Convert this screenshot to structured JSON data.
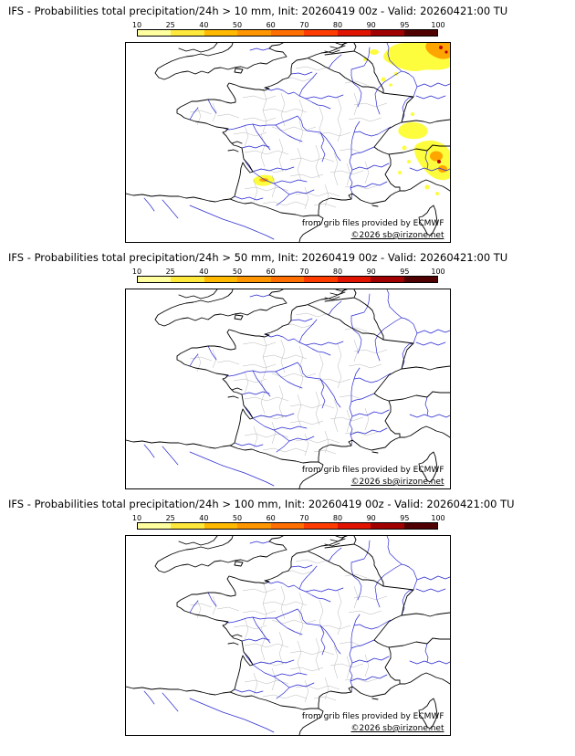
{
  "panels": [
    {
      "id": "precip-gt-10mm",
      "threshold_mm": 10,
      "title": "IFS - Probabilities total precipitation/24h > 10 mm, Init: 20260419 00z - Valid: 20260421:00 TU",
      "has_precipitation_signal": true
    },
    {
      "id": "precip-gt-50mm",
      "threshold_mm": 50,
      "title": "IFS - Probabilities total precipitation/24h > 50 mm, Init: 20260419 00z - Valid: 20260421:00 TU",
      "has_precipitation_signal": false
    },
    {
      "id": "precip-gt-100mm",
      "threshold_mm": 100,
      "title": "IFS - Probabilities total precipitation/24h > 100 mm, Init: 20260419 00z - Valid: 20260421:00 TU",
      "has_precipitation_signal": false
    }
  ],
  "scale": {
    "tick_labels": [
      "10",
      "25",
      "40",
      "50",
      "60",
      "70",
      "80",
      "90",
      "95",
      "100"
    ],
    "segment_colors": [
      "#ffffa0",
      "#ffe83c",
      "#ffb900",
      "#ff9500",
      "#ff6e00",
      "#ff3c00",
      "#e01400",
      "#a00000",
      "#500000"
    ]
  },
  "map": {
    "credit_line1": "from grib files provided by ECMWF",
    "credit_line2": "©2026 sb@irizone.net",
    "coastline_color": "#000000",
    "river_color": "#2a2ad2",
    "department_boundary_color": "#b8b8b8",
    "overlay_colors": [
      "#fdfd3d",
      "#ffa500",
      "#c00000"
    ]
  }
}
